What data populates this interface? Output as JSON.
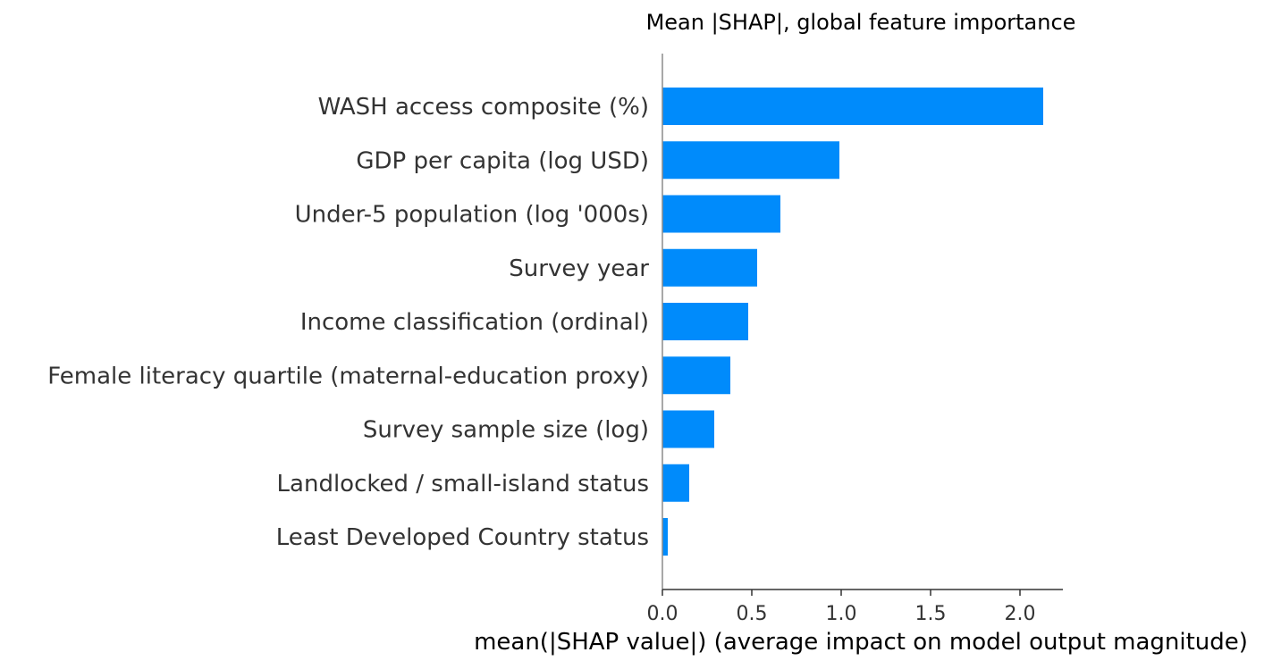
{
  "chart_data": {
    "type": "bar",
    "orientation": "horizontal",
    "title": "Mean |SHAP|, global feature importance",
    "xlabel": "mean(|SHAP value|) (average impact on model output magnitude)",
    "ylabel": "",
    "categories": [
      "WASH access composite (%)",
      "GDP per capita (log USD)",
      "Under-5 population (log '000s)",
      "Survey year",
      "Income classification (ordinal)",
      "Female literacy quartile (maternal-education proxy)",
      "Survey sample size (log)",
      "Landlocked / small-island status",
      "Least Developed Country status"
    ],
    "values": [
      2.13,
      0.99,
      0.66,
      0.53,
      0.48,
      0.38,
      0.29,
      0.15,
      0.03
    ],
    "xlim": [
      0,
      2.24
    ],
    "xticks": [
      0.0,
      0.5,
      1.0,
      1.5,
      2.0
    ],
    "xtick_labels": [
      "0.0",
      "0.5",
      "1.0",
      "1.5",
      "2.0"
    ],
    "bar_color": "#008bfb",
    "grid": false,
    "legend": "none"
  }
}
